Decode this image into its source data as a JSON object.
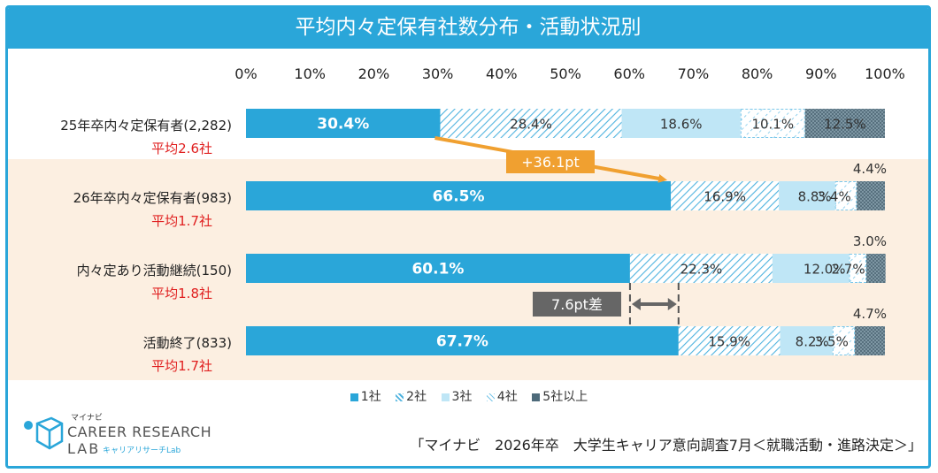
{
  "title": "平均内々定保有社数分布・活動状況別",
  "colors": {
    "frame": "#2aa6d9",
    "band": "#fcefe1",
    "seg1": "#2aa6d9",
    "seg2": "#6fc3e6",
    "seg3": "#bfe6f6",
    "seg4": "#8fd0ec",
    "seg5": "#4d6a7a",
    "arrow": "#f0a030",
    "gapbox": "#666666",
    "avg": "#e02020"
  },
  "axis_ticks": [
    "0%",
    "10%",
    "20%",
    "30%",
    "40%",
    "50%",
    "60%",
    "70%",
    "80%",
    "90%",
    "100%"
  ],
  "legend": [
    {
      "icon": "solid-square-icon",
      "label": "1社"
    },
    {
      "icon": "hatched-square-icon",
      "label": "2社"
    },
    {
      "icon": "light-square-icon",
      "label": "3社"
    },
    {
      "icon": "dashed-square-icon",
      "label": "4社"
    },
    {
      "icon": "dotted-square-icon",
      "label": "5社以上"
    }
  ],
  "rows": [
    {
      "label": "25年卒内々定保有者(2,282)",
      "avg": "平均2.6社"
    },
    {
      "label": "26年卒内々定保有者(983)",
      "avg": "平均1.7社"
    },
    {
      "label": "内々定あり活動継続(150)",
      "avg": "平均1.8社"
    },
    {
      "label": "活動終了(833)",
      "avg": "平均1.7社"
    }
  ],
  "annotations": {
    "diff_label": "+36.1pt",
    "gap_label": "7.6pt差"
  },
  "source": "「マイナビ　2026年卒　大学生キャリア意向調査7月＜就職活動・進路決定＞」",
  "logo": {
    "top": "マイナビ",
    "line1": "CAREER RESEARCH",
    "line2": "LAB",
    "sub": "キャリアリサーチLab"
  },
  "chart_data": {
    "type": "bar",
    "orientation": "horizontal",
    "stacked": true,
    "xlim": [
      0,
      100
    ],
    "x_unit": "%",
    "categories": [
      "25年卒内々定保有者(2,282)",
      "26年卒内々定保有者(983)",
      "内々定あり活動継続(150)",
      "活動終了(833)"
    ],
    "series": [
      {
        "name": "1社",
        "values": [
          30.4,
          66.5,
          60.1,
          67.7
        ],
        "labels": [
          "30.4%",
          "66.5%",
          "60.1%",
          "67.7%"
        ]
      },
      {
        "name": "2社",
        "values": [
          28.4,
          16.9,
          22.3,
          15.9
        ],
        "labels": [
          "28.4%",
          "16.9%",
          "22.3%",
          "15.9%"
        ]
      },
      {
        "name": "3社",
        "values": [
          18.6,
          8.8,
          12.0,
          8.2
        ],
        "labels": [
          "18.6%",
          "8.8%",
          "12.0%",
          "8.2%"
        ]
      },
      {
        "name": "4社",
        "values": [
          10.1,
          3.4,
          2.7,
          3.5
        ],
        "labels": [
          "10.1%",
          "3.4%",
          "2.7%",
          "3.5%"
        ]
      },
      {
        "name": "5社以上",
        "values": [
          12.5,
          4.4,
          3.0,
          4.7
        ],
        "labels": [
          "12.5%",
          "4.4%",
          "3.0%",
          "4.7%"
        ]
      }
    ]
  }
}
